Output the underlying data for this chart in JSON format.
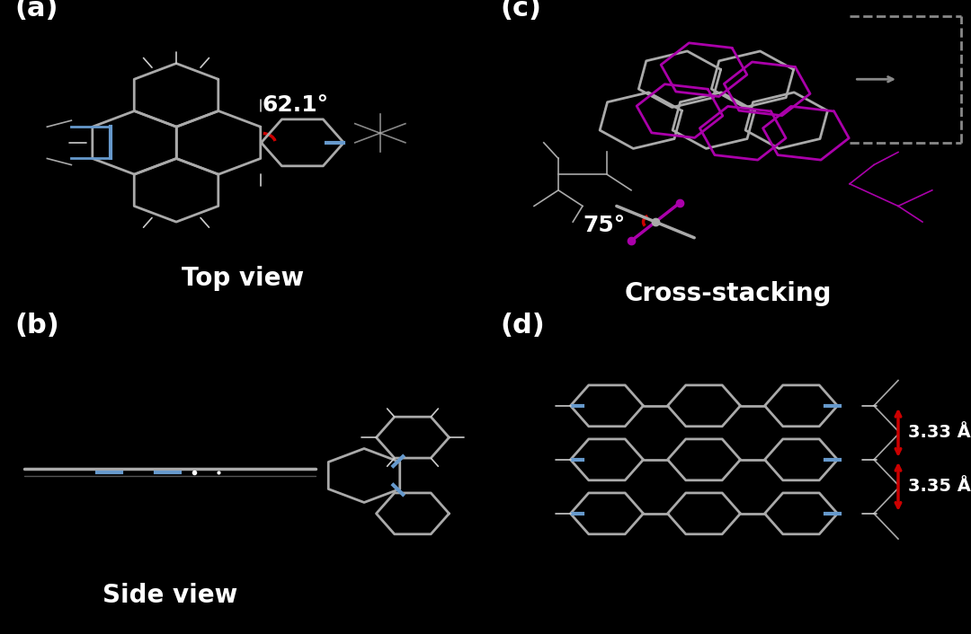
{
  "background_color": "#000000",
  "text_color": "#ffffff",
  "label_color": "#ffffff",
  "panel_labels": [
    "(a)",
    "(b)",
    "(c)",
    "(d)"
  ],
  "panel_label_fontsize": 22,
  "captions": {
    "a": "Top view",
    "b": "Side view",
    "c": "Cross-stacking",
    "d": ""
  },
  "caption_fontsize": 20,
  "angle_a": "62.1°",
  "angle_c": "75°",
  "dist1": "3.33 Å",
  "dist2": "3.35 Å",
  "molecule_color_gray": "#aaaaaa",
  "molecule_color_blue": "#6699cc",
  "molecule_color_purple": "#aa00aa",
  "red_arc_color": "#cc0000",
  "dashed_color": "#888888"
}
